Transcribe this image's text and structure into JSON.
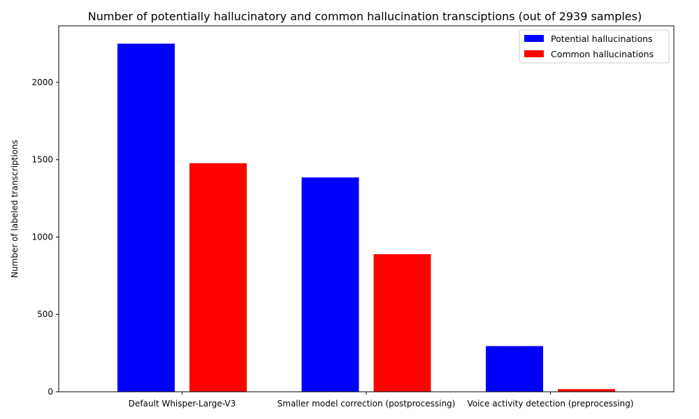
{
  "chart_data": {
    "type": "bar",
    "title": "Number of potentially hallucinatory and common hallucination transciptions (out of 2939 samples)",
    "xlabel": "",
    "ylabel": "Number of labeled transcriptions",
    "categories": [
      "Default Whisper-Large-V3",
      "Smaller model correction (postprocessing)",
      "Voice activity detection (preprocessing)"
    ],
    "series": [
      {
        "name": "Potential hallucinations",
        "color": "#0000ff",
        "values": [
          2250,
          1385,
          295
        ]
      },
      {
        "name": "Common hallucinations",
        "color": "#ff0000",
        "values": [
          1477,
          889,
          17
        ]
      }
    ],
    "ylim": [
      0,
      2365
    ],
    "yticks": [
      0,
      500,
      1000,
      1500,
      2000
    ],
    "ytick_labels": [
      "0",
      "500",
      "1000",
      "1500",
      "2000"
    ],
    "legend_position": "top-right",
    "grid": false
  }
}
